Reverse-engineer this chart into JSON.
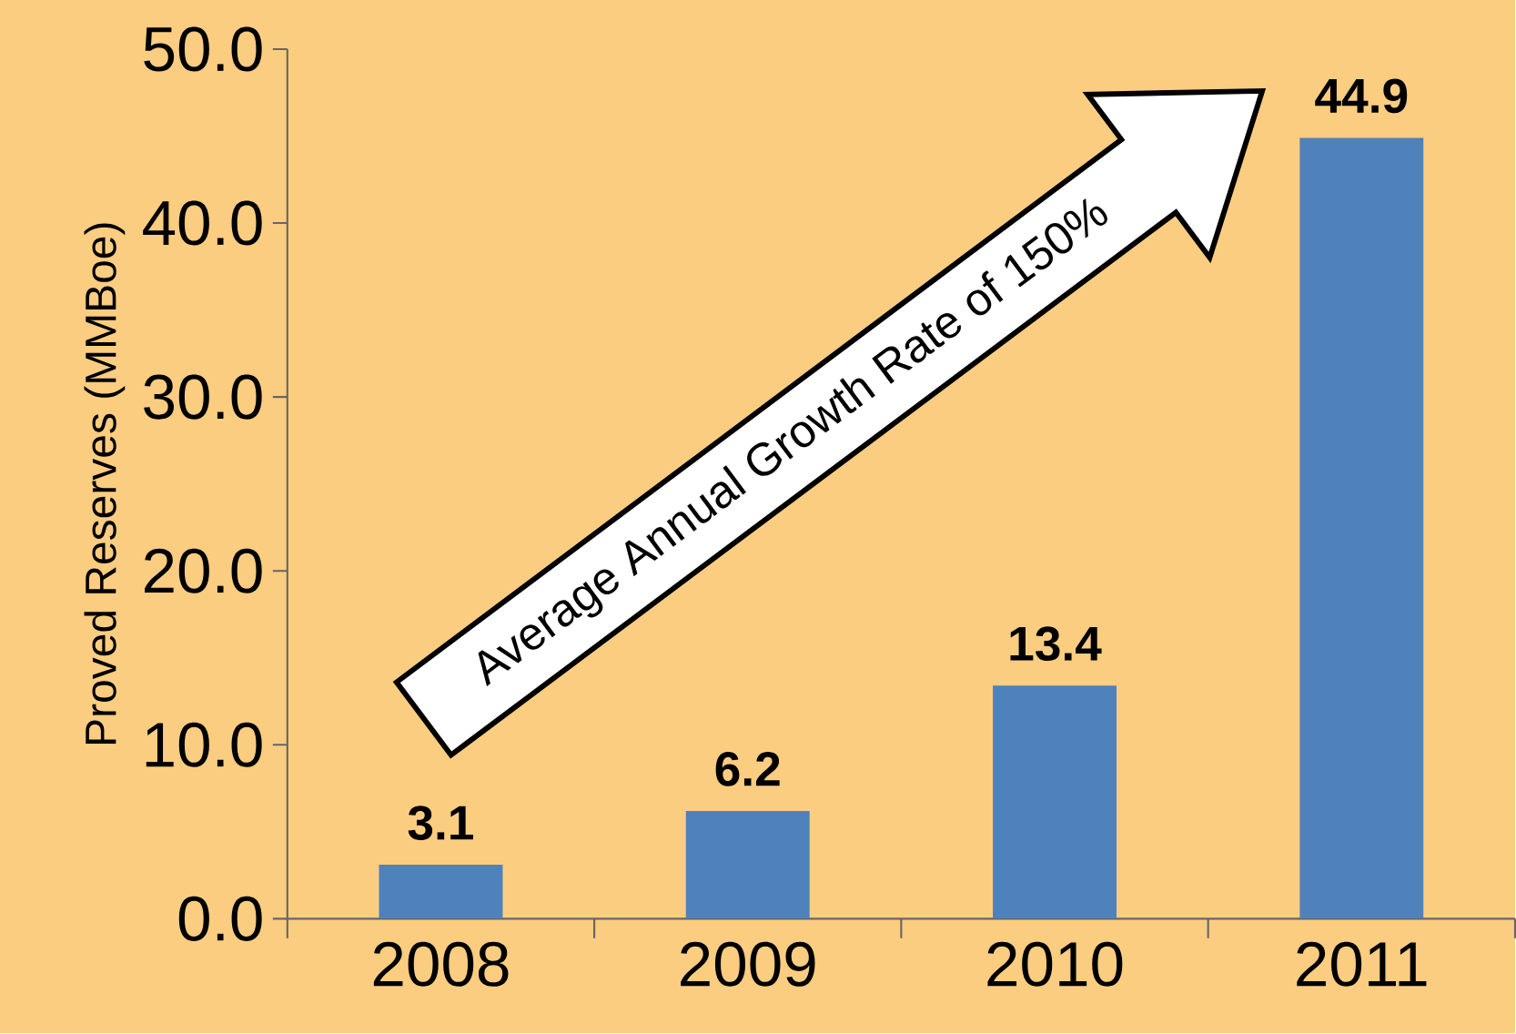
{
  "chart_data": {
    "type": "bar",
    "ylabel": "Proved Reserves (MMBoe)",
    "categories": [
      "2008",
      "2009",
      "2010",
      "2011"
    ],
    "values": [
      3.1,
      6.2,
      13.4,
      44.9
    ],
    "value_labels": [
      "3.1",
      "6.2",
      "13.4",
      "44.9"
    ],
    "color": "#4f81bd",
    "ylim": [
      0,
      50
    ],
    "yticks": [
      {
        "value": 0,
        "label": "0.0"
      },
      {
        "value": 10,
        "label": "10.0"
      },
      {
        "value": 20,
        "label": "20.0"
      },
      {
        "value": 30,
        "label": "30.0"
      },
      {
        "value": 40,
        "label": "40.0"
      },
      {
        "value": 50,
        "label": "50.0"
      }
    ],
    "annotations": [
      "Average Annual Growth Rate of 150%"
    ]
  }
}
